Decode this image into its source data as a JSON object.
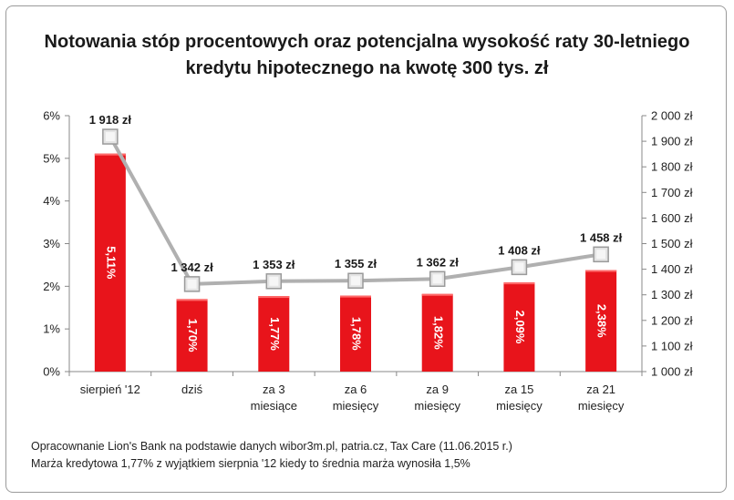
{
  "chart_data": {
    "type": "bar+line",
    "title": "Notowania stóp procentowych oraz potencjalna wysokość raty 30-letniego kredytu hipotecznego na kwotę 300 tys. zł",
    "categories": [
      [
        "sierpień '12"
      ],
      [
        "dziś"
      ],
      [
        "za 3",
        "miesiące"
      ],
      [
        "za 6",
        "miesięcy"
      ],
      [
        "za 9",
        "miesięcy"
      ],
      [
        "za 15",
        "miesięcy"
      ],
      [
        "za 21",
        "miesięcy"
      ]
    ],
    "bars": {
      "values": [
        5.11,
        1.7,
        1.77,
        1.78,
        1.82,
        2.09,
        2.38
      ],
      "labels": [
        "5,11%",
        "1,70%",
        "1,77%",
        "1,78%",
        "1,82%",
        "2,09%",
        "2,38%"
      ],
      "color": "#e8141b"
    },
    "line": {
      "values": [
        1918,
        1342,
        1353,
        1355,
        1362,
        1408,
        1458
      ],
      "labels": [
        "1 918 zł",
        "1 342 zł",
        "1 353 zł",
        "1 355 zł",
        "1 362 zł",
        "1 408 zł",
        "1 458 zł"
      ],
      "color": "#b0b0b0"
    },
    "y_left": {
      "ylim": [
        0,
        6
      ],
      "ticks": [
        0,
        1,
        2,
        3,
        4,
        5,
        6
      ],
      "tick_labels": [
        "0%",
        "1%",
        "2%",
        "3%",
        "4%",
        "5%",
        "6%"
      ]
    },
    "y_right": {
      "ylim": [
        1000,
        2000
      ],
      "ticks": [
        1000,
        1100,
        1200,
        1300,
        1400,
        1500,
        1600,
        1700,
        1800,
        1900,
        2000
      ],
      "tick_labels": [
        "1 000 zł",
        "1 100 zł",
        "1 200 zł",
        "1 300 zł",
        "1 400 zł",
        "1 500 zł",
        "1 600 zł",
        "1 700 zł",
        "1 800 zł",
        "1 900 zł",
        "2 000 zł"
      ]
    },
    "grid": false,
    "legend": "none"
  },
  "footnotes": [
    "Opracownanie Lion's Bank na podstawie danych wibor3m.pl, patria.cz, Tax Care (11.06.2015 r.)",
    "Marża kredytowa 1,77% z wyjątkiem sierpnia '12 kiedy to średnia marża wynosiła 1,5%"
  ]
}
